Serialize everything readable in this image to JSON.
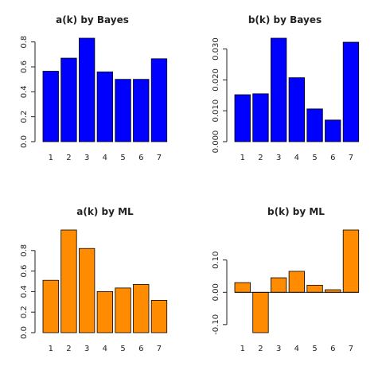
{
  "chart_data": [
    {
      "type": "bar",
      "title": "a(k) by Bayes",
      "categories": [
        "1",
        "2",
        "3",
        "4",
        "5",
        "6",
        "7"
      ],
      "values": [
        0.565,
        0.67,
        0.83,
        0.56,
        0.5,
        0.5,
        0.665
      ],
      "ylim": [
        0,
        0.83
      ],
      "yticks": [
        0,
        0.2,
        0.4,
        0.6,
        0.8
      ],
      "ytick_labels": [
        "0.0",
        "0.2",
        "0.4",
        "0.6",
        "0.8"
      ],
      "xlabel": "",
      "ylabel": "",
      "bar_color": "#0000ff",
      "grid": false
    },
    {
      "type": "bar",
      "title": "b(k) by Bayes",
      "categories": [
        "1",
        "2",
        "3",
        "4",
        "5",
        "6",
        "7"
      ],
      "values": [
        0.0152,
        0.0155,
        0.0335,
        0.0207,
        0.0106,
        0.007,
        0.0322
      ],
      "ylim": [
        0,
        0.0335
      ],
      "yticks": [
        0,
        0.01,
        0.02,
        0.03
      ],
      "ytick_labels": [
        "0.000",
        "0.010",
        "0.020",
        "0.030"
      ],
      "xlabel": "",
      "ylabel": "",
      "bar_color": "#0000ff",
      "grid": false
    },
    {
      "type": "bar",
      "title": "a(k) by ML",
      "categories": [
        "1",
        "2",
        "3",
        "4",
        "5",
        "6",
        "7"
      ],
      "values": [
        0.51,
        1.0,
        0.82,
        0.4,
        0.435,
        0.47,
        0.315
      ],
      "ylim": [
        0,
        1.0
      ],
      "yticks": [
        0,
        0.2,
        0.4,
        0.6,
        0.8
      ],
      "ytick_labels": [
        "0.0",
        "0.2",
        "0.4",
        "0.6",
        "0.8"
      ],
      "xlabel": "",
      "ylabel": "",
      "bar_color": "#ff8c00",
      "grid": false
    },
    {
      "type": "bar",
      "title": "b(k) by ML",
      "categories": [
        "1",
        "2",
        "3",
        "4",
        "5",
        "6",
        "7"
      ],
      "values": [
        0.03,
        -0.125,
        0.045,
        0.065,
        0.022,
        0.008,
        0.193
      ],
      "ylim": [
        -0.125,
        0.193
      ],
      "yticks": [
        -0.1,
        0,
        0.1
      ],
      "ytick_labels": [
        "-0.10",
        "0.00",
        "0.10"
      ],
      "xlabel": "",
      "ylabel": "",
      "bar_color": "#ff8c00",
      "grid": false
    }
  ]
}
